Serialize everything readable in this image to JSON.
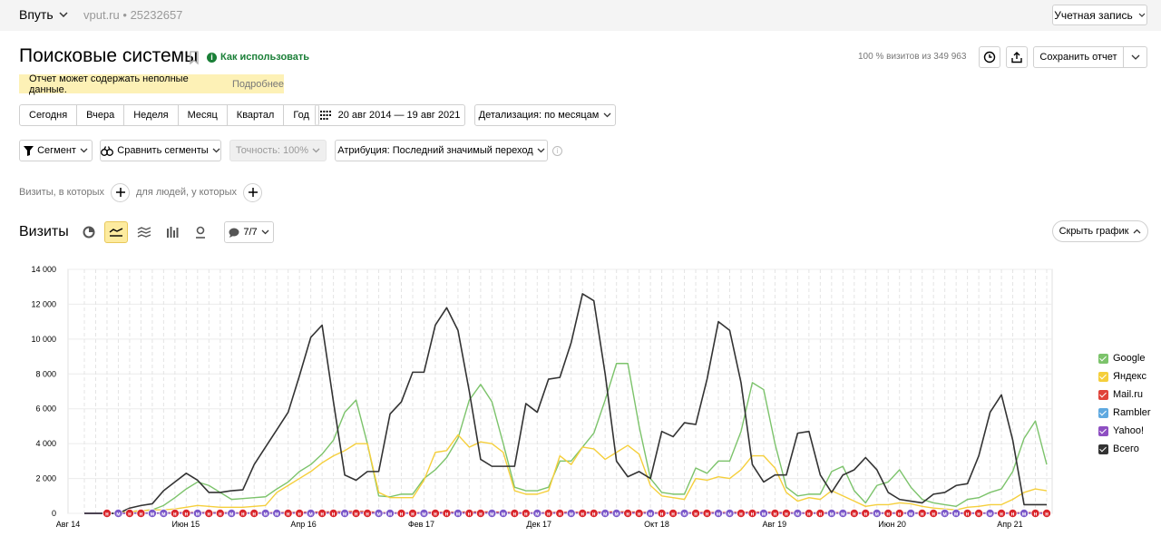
{
  "topbar": {
    "counter_label": "Впуть",
    "site": "vput.ru",
    "separator": "•",
    "counter_id": "25232657",
    "account_label": "Учетная запись"
  },
  "header": {
    "title": "Поисковые системы",
    "howto_label": "Как использовать",
    "visits_share": "100 % визитов из 349 963",
    "save_label": "Сохранить отчет"
  },
  "warning": {
    "text": "Отчет может содержать неполные данные.",
    "more": "Подробнее"
  },
  "periods": [
    "Сегодня",
    "Вчера",
    "Неделя",
    "Месяц",
    "Квартал",
    "Год"
  ],
  "date_range": "20 авг 2014 — 19 авг 2021",
  "detail_label": "Детализация: по месяцам",
  "controls": {
    "segment": "Сегмент",
    "compare": "Сравнить сегменты",
    "accuracy": "Точность: 100%",
    "attribution": "Атрибуция: Последний значимый переход"
  },
  "filters": {
    "visits_where": "Визиты, в которых",
    "people_where": "для людей, у которых"
  },
  "chart_header": {
    "metric": "Визиты",
    "series_count": "7/7",
    "hide_label": "Скрыть график"
  },
  "colors": {
    "google": "#7cc36b",
    "yandex": "#f5cf3c",
    "mailru": "#e0433a",
    "rambler": "#5fa9e0",
    "yahoo": "#8e4fc2",
    "total": "#333333"
  },
  "chart_data": {
    "type": "line",
    "x_ticks": [
      "Авг 14",
      "Июн 15",
      "Апр 16",
      "Фев 17",
      "Дек 17",
      "Окт 18",
      "Авг 19",
      "Июн 20",
      "Апр 21"
    ],
    "y_ticks": [
      "0",
      "2 000",
      "4 000",
      "6 000",
      "8 000",
      "10 000",
      "12 000",
      "14 000"
    ],
    "ylim": [
      0,
      14000
    ],
    "series": [
      {
        "name": "Google",
        "color": "#7cc36b",
        "values": [
          0,
          0,
          0,
          0,
          100,
          150,
          200,
          450,
          900,
          1400,
          1800,
          1600,
          1200,
          800,
          850,
          900,
          950,
          1400,
          1800,
          2400,
          2800,
          3400,
          4200,
          5800,
          6500,
          4000,
          1000,
          950,
          1100,
          1100,
          2000,
          2500,
          3200,
          4300,
          6500,
          7400,
          6400,
          4000,
          1500,
          1300,
          1300,
          1500,
          3000,
          3000,
          3800,
          4600,
          6500,
          8600,
          8600,
          5000,
          2000,
          1200,
          1100,
          1100,
          2600,
          2300,
          3000,
          3000,
          4700,
          7500,
          7100,
          4000,
          1500,
          1000,
          1100,
          1100,
          2400,
          2700,
          1300,
          600,
          1600,
          1800,
          2500,
          1500,
          800,
          600,
          500,
          400,
          800,
          900,
          1200,
          1400,
          2400,
          4300,
          5300,
          2800
        ]
      },
      {
        "name": "Яндекс",
        "color": "#f5cf3c",
        "values": [
          0,
          0,
          0,
          0,
          100,
          150,
          200,
          200,
          250,
          350,
          450,
          400,
          350,
          350,
          350,
          400,
          450,
          1200,
          1600,
          2000,
          2400,
          2900,
          3300,
          3600,
          4000,
          4000,
          1200,
          900,
          900,
          900,
          1900,
          3500,
          3600,
          4500,
          3800,
          4100,
          4000,
          3500,
          1300,
          1100,
          1100,
          1300,
          3300,
          2800,
          3800,
          3700,
          3100,
          3500,
          3900,
          3400,
          1600,
          1000,
          900,
          800,
          2000,
          1900,
          2100,
          2000,
          2500,
          3300,
          3300,
          2600,
          1200,
          700,
          900,
          800,
          1300,
          1000,
          700,
          400,
          500,
          500,
          600,
          550,
          400,
          300,
          250,
          200,
          350,
          400,
          500,
          500,
          800,
          1200,
          1400,
          1300
        ]
      },
      {
        "name": "Mail.ru",
        "color": "#e0433a",
        "values": [
          0,
          0,
          0,
          0,
          20,
          20,
          20,
          30,
          40,
          50,
          50,
          50,
          40,
          30,
          30,
          30,
          30,
          40,
          50,
          60,
          70,
          80,
          90,
          100,
          110,
          110,
          40,
          30,
          30,
          30,
          50,
          60,
          60,
          70,
          80,
          90,
          80,
          70,
          40,
          30,
          30,
          40,
          60,
          60,
          70,
          70,
          80,
          90,
          90,
          70,
          40,
          30,
          30,
          30,
          50,
          50,
          50,
          50,
          60,
          70,
          70,
          60,
          40,
          30,
          30,
          30,
          40,
          40,
          30,
          20,
          30,
          30,
          30,
          30,
          20,
          20,
          20,
          20,
          20,
          20,
          20,
          20,
          30,
          40,
          40,
          30
        ]
      },
      {
        "name": "Rambler",
        "color": "#5fa9e0",
        "values": [
          0,
          0,
          0,
          0,
          10,
          10,
          10,
          10,
          15,
          20,
          20,
          20,
          15,
          10,
          10,
          10,
          10,
          15,
          20,
          20,
          25,
          25,
          30,
          30,
          30,
          30,
          15,
          10,
          10,
          10,
          15,
          20,
          20,
          20,
          25,
          25,
          25,
          20,
          10,
          10,
          10,
          10,
          15,
          15,
          15,
          15,
          20,
          20,
          20,
          15,
          10,
          10,
          10,
          10,
          10,
          10,
          10,
          10,
          15,
          15,
          15,
          10,
          10,
          5,
          5,
          5,
          5,
          5,
          5,
          5,
          5,
          5,
          5,
          5,
          5,
          5,
          5,
          5,
          5,
          5,
          5,
          5,
          5,
          5,
          5,
          5
        ]
      },
      {
        "name": "Yahoo!",
        "color": "#8e4fc2",
        "values": [
          0,
          0,
          0,
          0,
          5,
          5,
          5,
          5,
          5,
          10,
          10,
          10,
          5,
          5,
          5,
          5,
          5,
          5,
          10,
          10,
          10,
          10,
          15,
          15,
          15,
          15,
          5,
          5,
          5,
          5,
          10,
          10,
          10,
          10,
          15,
          15,
          15,
          10,
          5,
          5,
          5,
          5,
          10,
          10,
          10,
          10,
          10,
          15,
          15,
          10,
          5,
          5,
          5,
          5,
          5,
          5,
          5,
          5,
          10,
          10,
          10,
          5,
          5,
          5,
          5,
          5,
          5,
          5,
          5,
          5,
          5,
          5,
          5,
          5,
          5,
          5,
          5,
          5,
          5,
          5,
          5,
          5,
          5,
          5,
          5,
          5
        ]
      },
      {
        "name": "Всего",
        "color": "#333333",
        "values": [
          0,
          0,
          0,
          0,
          300,
          450,
          550,
          1300,
          1800,
          2300,
          1900,
          1200,
          1200,
          1300,
          1350,
          2800,
          3800,
          4800,
          5800,
          7900,
          10100,
          10800,
          6400,
          2200,
          1900,
          2400,
          2400,
          5700,
          6400,
          8100,
          8100,
          10800,
          11800,
          10500,
          7000,
          3100,
          2700,
          2700,
          2700,
          6300,
          5800,
          7700,
          7800,
          9800,
          12600,
          12200,
          8000,
          3000,
          2100,
          2400,
          2000,
          4700,
          4400,
          5200,
          5100,
          7700,
          11000,
          10500,
          7500,
          2800,
          1800,
          2200,
          2200,
          4600,
          4700,
          2200,
          1200,
          2200,
          2500,
          3200,
          2500,
          1200,
          800,
          700,
          600,
          1100,
          1200,
          1600,
          1700,
          3300,
          5800,
          6800,
          4200,
          500,
          500,
          500
        ]
      }
    ],
    "legend": [
      "Google",
      "Яндекс",
      "Mail.ru",
      "Rambler",
      "Yahoo!",
      "Всего"
    ],
    "legend_position": "right",
    "grid": true
  }
}
